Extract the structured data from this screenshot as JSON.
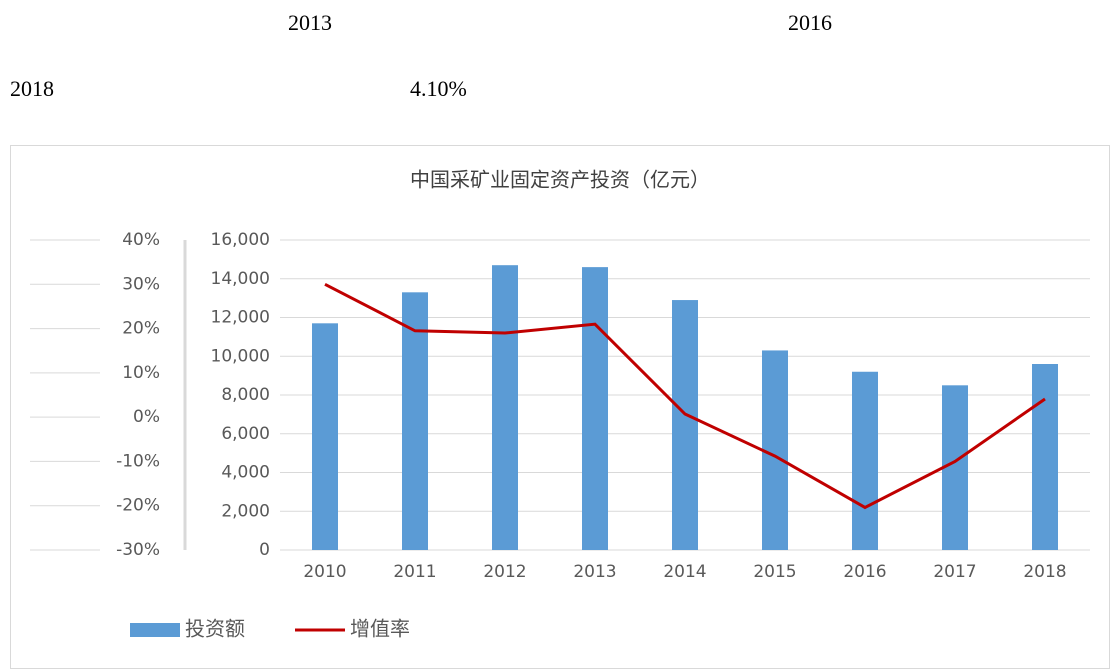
{
  "text": {
    "row1": [
      "2013",
      "2016"
    ],
    "row2": [
      "2018",
      "4.10%"
    ]
  },
  "chart_data": {
    "type": "bar-line",
    "title": "中国采矿业固定资产投资（亿元）",
    "categories": [
      "2010",
      "2011",
      "2012",
      "2013",
      "2014",
      "2015",
      "2016",
      "2017",
      "2018"
    ],
    "series": [
      {
        "name": "投资额",
        "color": "#5b9bd5",
        "type": "bar",
        "values": [
          11700,
          13300,
          14700,
          14600,
          12900,
          10300,
          9200,
          8500,
          9600
        ]
      },
      {
        "name": "增值率",
        "color": "#c00000",
        "type": "line",
        "axis": "y2",
        "values": [
          30,
          19.5,
          19,
          21,
          0.7,
          -8.8,
          -20.4,
          -10,
          4.1
        ]
      }
    ],
    "ylim": [
      0,
      16000
    ],
    "yticks": [
      0,
      {
        "value": 2000,
        "label": "2,000"
      },
      {
        "value": 4000,
        "label": "4,000"
      },
      {
        "value": 6000,
        "label": "6,000"
      },
      {
        "value": 8000,
        "label": "8,000"
      },
      {
        "value": 10000,
        "label": "10,000"
      },
      {
        "value": 12000,
        "label": "12,000"
      },
      {
        "value": 14000,
        "label": "14,000"
      },
      {
        "value": 16000,
        "label": "16,000"
      }
    ],
    "y2lim": [
      -30,
      40
    ],
    "y2ticks": [
      {
        "value": -30,
        "label": "-30%"
      },
      {
        "value": -20,
        "label": "-20%"
      },
      {
        "value": -10,
        "label": "-10%"
      },
      {
        "value": 0,
        "label": "0%"
      },
      {
        "value": 10,
        "label": "10%"
      },
      {
        "value": 20,
        "label": "20%"
      },
      {
        "value": 30,
        "label": "30%"
      },
      {
        "value": 40,
        "label": "40%"
      }
    ],
    "grid": true,
    "legend": "bottom"
  }
}
